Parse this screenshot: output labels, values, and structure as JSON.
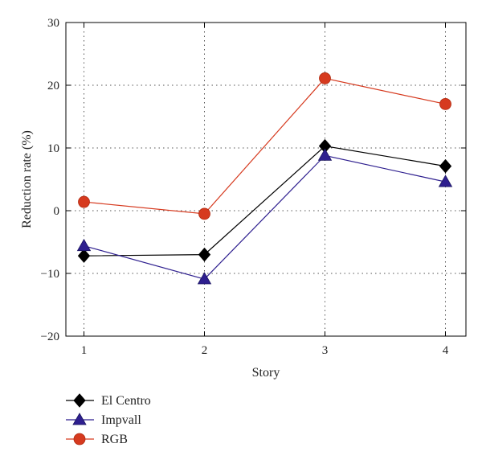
{
  "chart_data": {
    "type": "line",
    "xlabel": "Story",
    "ylabel": "Reduction rate (%)",
    "x": [
      1,
      2,
      3,
      4
    ],
    "xticks": [
      "1",
      "2",
      "3",
      "4"
    ],
    "xlim": [
      0.85,
      4.17
    ],
    "ylim": [
      -20,
      30
    ],
    "yticks": [
      "30",
      "20",
      "10",
      "0",
      "−10",
      "−20"
    ],
    "ytick_values": [
      30,
      20,
      10,
      0,
      -10,
      -20
    ],
    "grid": true,
    "legend_position": "bottom-left, outside plot",
    "series": [
      {
        "name": "El Centro",
        "values": [
          -7.2,
          -7.0,
          10.3,
          7.1
        ],
        "color": "#000000",
        "marker": "diamond"
      },
      {
        "name": "Impvall",
        "values": [
          -5.6,
          -10.9,
          8.8,
          4.6
        ],
        "color": "#2e1f8f",
        "marker": "triangle"
      },
      {
        "name": "RGB",
        "values": [
          1.4,
          -0.5,
          21.1,
          17.0
        ],
        "color": "#d63a1f",
        "marker": "circle"
      }
    ]
  }
}
